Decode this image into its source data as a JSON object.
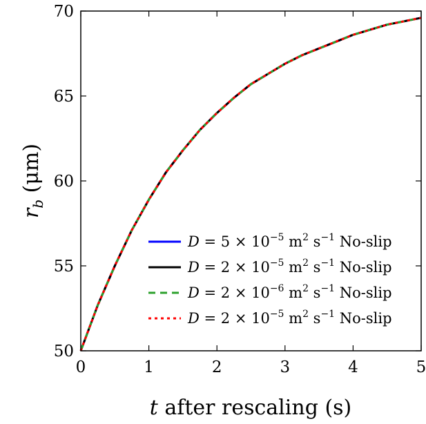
{
  "chart_data": {
    "type": "line",
    "title": "",
    "xlabel": {
      "var": "t",
      "rest": " after rescaling (s)"
    },
    "ylabel": {
      "var": "r",
      "sub": "b",
      "rest": " (μm)"
    },
    "xlim": [
      0,
      5
    ],
    "ylim": [
      50,
      70
    ],
    "xticks": [
      0,
      1,
      2,
      3,
      4,
      5
    ],
    "yticks": [
      50,
      55,
      60,
      65,
      70
    ],
    "grid": false,
    "legend_position": "lower-right",
    "x": [
      0,
      0.25,
      0.5,
      0.75,
      1.0,
      1.25,
      1.5,
      1.75,
      2.0,
      2.25,
      2.5,
      2.75,
      3.0,
      3.25,
      3.5,
      3.75,
      4.0,
      4.25,
      4.5,
      4.75,
      5.0
    ],
    "series": [
      {
        "legend": {
          "var": "D",
          "mid": " = 5 × 10",
          "exp": "−5",
          "units": " m",
          "u2": "2",
          "s": " s",
          "sexp": "−1",
          "tail": " No-slip"
        },
        "color": "#0000ff",
        "style": "solid",
        "values": [
          50.0,
          52.7,
          55.0,
          57.1,
          58.9,
          60.5,
          61.8,
          63.0,
          64.0,
          64.9,
          65.7,
          66.3,
          66.9,
          67.4,
          67.8,
          68.2,
          68.6,
          68.9,
          69.2,
          69.4,
          69.6
        ]
      },
      {
        "legend": {
          "var": "D",
          "mid": " = 2 × 10",
          "exp": "−5",
          "units": " m",
          "u2": "2",
          "s": " s",
          "sexp": "−1",
          "tail": " No-slip"
        },
        "color": "#000000",
        "style": "solid",
        "values": [
          50.0,
          52.7,
          55.0,
          57.1,
          58.9,
          60.5,
          61.8,
          63.0,
          64.0,
          64.9,
          65.7,
          66.3,
          66.9,
          67.4,
          67.8,
          68.2,
          68.6,
          68.9,
          69.2,
          69.4,
          69.6
        ]
      },
      {
        "legend": {
          "var": "D",
          "mid": " = 2 × 10",
          "exp": "−6",
          "units": " m",
          "u2": "2",
          "s": " s",
          "sexp": "−1",
          "tail": " No-slip"
        },
        "color": "#2ca02c",
        "style": "dashed",
        "values": [
          50.0,
          52.7,
          55.0,
          57.1,
          58.9,
          60.5,
          61.8,
          63.0,
          64.0,
          64.9,
          65.7,
          66.3,
          66.9,
          67.4,
          67.8,
          68.2,
          68.6,
          68.9,
          69.2,
          69.4,
          69.6
        ]
      },
      {
        "legend": {
          "var": "D",
          "mid": " = 2 × 10",
          "exp": "−5",
          "units": " m",
          "u2": "2",
          "s": " s",
          "sexp": "−1",
          "tail": " No-slip"
        },
        "color": "#ff0000",
        "style": "dotted",
        "values": [
          50.0,
          52.7,
          55.0,
          57.1,
          58.9,
          60.5,
          61.8,
          63.0,
          64.0,
          64.9,
          65.7,
          66.3,
          66.9,
          67.4,
          67.8,
          68.2,
          68.6,
          68.9,
          69.2,
          69.4,
          69.6
        ]
      }
    ]
  }
}
